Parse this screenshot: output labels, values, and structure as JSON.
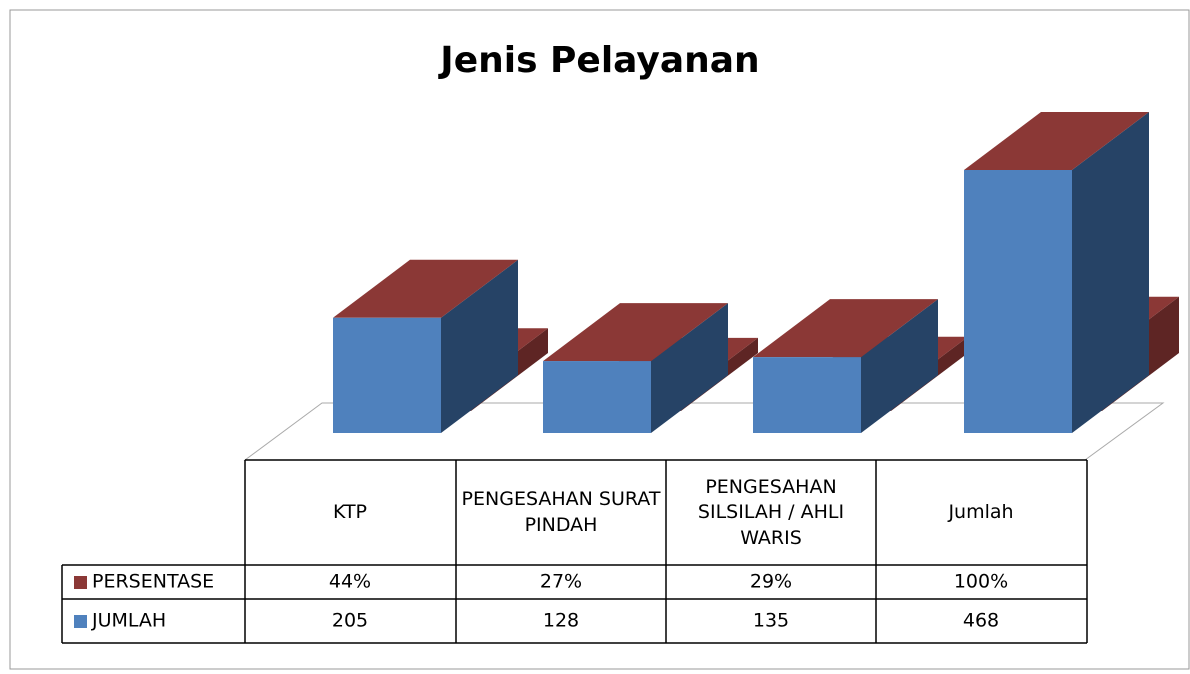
{
  "chart_data": {
    "type": "bar3d",
    "title": "Jenis Pelayanan",
    "categories": [
      "KTP",
      "PENGESAHAN SURAT PINDAH",
      "PENGESAHAN SILSILAH / AHLI WARIS",
      "Jumlah"
    ],
    "series": [
      {
        "name": "PERSENTASE",
        "color": "#8b3836",
        "values": [
          44,
          27,
          29,
          100
        ],
        "value_labels": [
          "44%",
          "27%",
          "29%",
          "100%"
        ]
      },
      {
        "name": "JUMLAH",
        "color": "#4f81bd",
        "values": [
          205,
          128,
          135,
          468
        ]
      }
    ],
    "ylim": [
      0,
      468
    ]
  }
}
